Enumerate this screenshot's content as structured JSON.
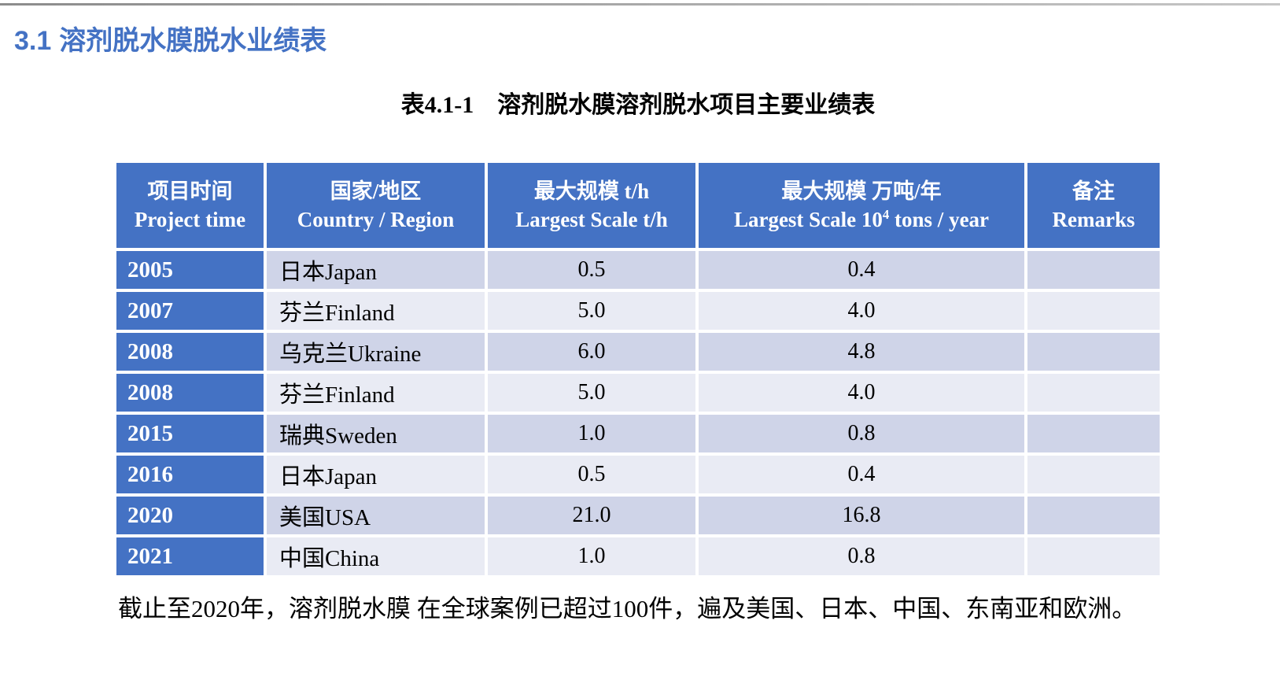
{
  "document": {
    "heading": {
      "number": "3.1",
      "title": "溶剂脱水膜脱水业绩表"
    },
    "caption": "表4.1-1　溶剂脱水膜溶剂脱水项目主要业绩表",
    "footer_note": "截止至2020年，溶剂脱水膜 在全球案例已超过100件，遍及美国、日本、中国、东南亚和欧洲。"
  },
  "table": {
    "headers": [
      {
        "zh": "项目时间",
        "en": "Project time"
      },
      {
        "zh": "国家/地区",
        "en": "Country / Region"
      },
      {
        "zh": "最大规模 t/h",
        "en": "Largest Scale t/h"
      },
      {
        "zh": "最大规模 万吨/年",
        "en_prefix": "Largest Scale 10",
        "en_sup": "4",
        "en_suffix": " tons / year"
      },
      {
        "zh": "备注",
        "en": "Remarks"
      }
    ],
    "rows": [
      {
        "year": "2005",
        "country": "日本Japan",
        "largest_scale_th": "0.5",
        "largest_scale_10k_tons_year": "0.4",
        "remarks": ""
      },
      {
        "year": "2007",
        "country": "芬兰Finland",
        "largest_scale_th": "5.0",
        "largest_scale_10k_tons_year": "4.0",
        "remarks": ""
      },
      {
        "year": "2008",
        "country": "乌克兰Ukraine",
        "largest_scale_th": "6.0",
        "largest_scale_10k_tons_year": "4.8",
        "remarks": ""
      },
      {
        "year": "2008",
        "country": "芬兰Finland",
        "largest_scale_th": "5.0",
        "largest_scale_10k_tons_year": "4.0",
        "remarks": ""
      },
      {
        "year": "2015",
        "country": "瑞典Sweden",
        "largest_scale_th": "1.0",
        "largest_scale_10k_tons_year": "0.8",
        "remarks": ""
      },
      {
        "year": "2016",
        "country": "日本Japan",
        "largest_scale_th": "0.5",
        "largest_scale_10k_tons_year": "0.4",
        "remarks": ""
      },
      {
        "year": "2020",
        "country": "美国USA",
        "largest_scale_th": "21.0",
        "largest_scale_10k_tons_year": "16.8",
        "remarks": ""
      },
      {
        "year": "2021",
        "country": "中国China",
        "largest_scale_th": "1.0",
        "largest_scale_10k_tons_year": "0.8",
        "remarks": ""
      }
    ]
  },
  "colors": {
    "header_blue": "#4472C4",
    "band_dark": "#CFD4E8",
    "band_light": "#E9EBF4",
    "heading_blue": "#4472C4"
  }
}
